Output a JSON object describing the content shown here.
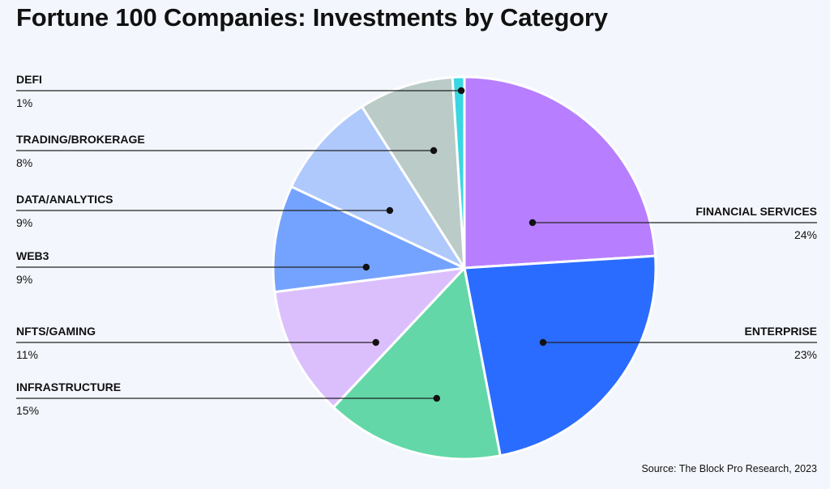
{
  "chart_data": {
    "type": "pie",
    "title": "Fortune 100 Companies: Investments by Category",
    "source": "Source: The Block Pro Research, 2023",
    "slices": [
      {
        "label": "FINANCIAL SERVICES",
        "value_label": "24%",
        "value": 24,
        "color": "#b77fff"
      },
      {
        "label": "ENTERPRISE",
        "value_label": "23%",
        "value": 23,
        "color": "#2a6cff"
      },
      {
        "label": "INFRASTRUCTURE",
        "value_label": "15%",
        "value": 15,
        "color": "#63d7a8"
      },
      {
        "label": "NFTS/GAMING",
        "value_label": "11%",
        "value": 11,
        "color": "#dbbffd"
      },
      {
        "label": "WEB3",
        "value_label": "9%",
        "value": 9,
        "color": "#74a3ff"
      },
      {
        "label": "DATA/ANALYTICS",
        "value_label": "9%",
        "value": 9,
        "color": "#afc9fd"
      },
      {
        "label": "TRADING/BROKERAGE",
        "value_label": "8%",
        "value": 8,
        "color": "#bacbc8"
      },
      {
        "label": "DEFI",
        "value_label": "1%",
        "value": 1,
        "color": "#3ad6e2"
      }
    ],
    "legend": "callout labels on both sides of the pie"
  }
}
